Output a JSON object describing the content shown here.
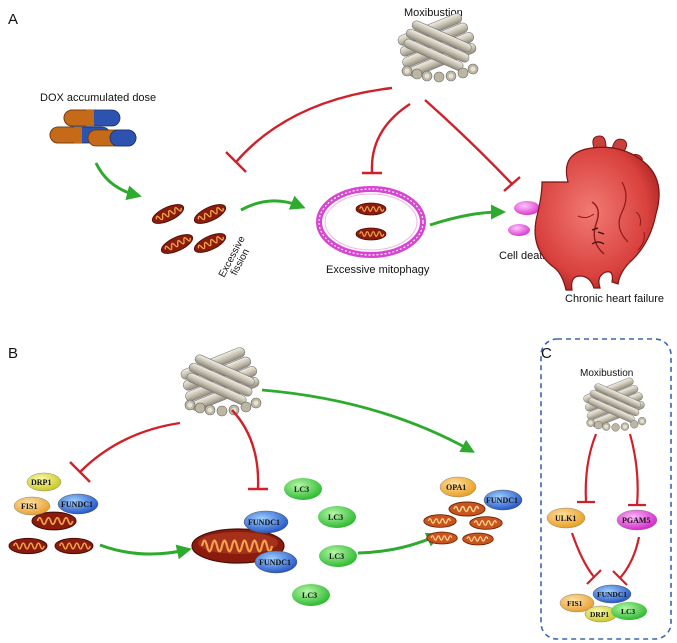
{
  "panel_a": {
    "letter": "A",
    "moxibustion": "Moxibustion",
    "dox": "DOX accumulated dose",
    "fission_line1": "Excessive",
    "fission_line2": "fission",
    "mitophagy": "Excessive mitophagy",
    "cell_death": "Cell death",
    "chf": "Chronic heart failure"
  },
  "panel_b": {
    "letter": "B",
    "drp1": "DRP1",
    "fis1": "FIS1",
    "fundc1_left": "FUNDC1",
    "fundc1_mid_top": "FUNDC1",
    "fundc1_mid_bottom": "FUNDC1",
    "lc3": [
      "LC3",
      "LC3",
      "LC3",
      "LC3"
    ],
    "opa1": "OPA1",
    "fundc1_right": "FUNDC1"
  },
  "panel_c": {
    "letter": "C",
    "moxibustion": "Moxibustion",
    "ulk1": "ULK1",
    "pgam5": "PGAM5",
    "fundc1": "FUNDC1",
    "fis1": "FIS1",
    "drp1": "DRP1",
    "lc3": "LC3"
  },
  "colors": {
    "inhibition": "#d0202a",
    "activation": "#2eaa2e",
    "dashed_border": "#3a66b0",
    "lc3": "#3ccf3c",
    "fundc1": "#3a7ee0",
    "drp1": "#e8e030",
    "fis1": "#f3b94a",
    "pgam5": "#e84bd8",
    "ulk1": "#f2a92b",
    "opa1": "#f0b22e",
    "mito": "#8a1c0e",
    "vesicle": "#e040d8"
  }
}
